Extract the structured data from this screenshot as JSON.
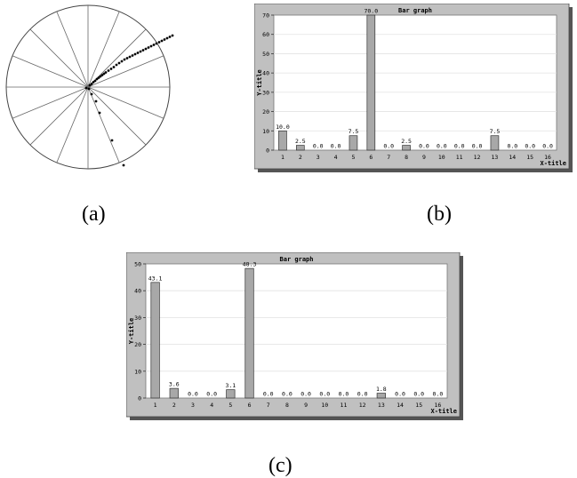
{
  "panel_labels": {
    "a": "(a)",
    "b": "(b)",
    "c": "(c)"
  },
  "colors": {
    "frame": "#c0c0c0",
    "shadow": "#555555",
    "bar_fill": "#a8a8a8",
    "bar_stroke": "#333333",
    "grid": "#e2e2e2"
  },
  "chart_data": [
    {
      "panel": "a",
      "type": "scatter",
      "title": "",
      "note": "polar plot: circle divided into 16 radial sectors with points along rays",
      "sectors": 16,
      "points": [
        [
          2,
          2
        ],
        [
          4,
          3.5
        ],
        [
          6,
          5.5
        ],
        [
          8,
          7
        ],
        [
          10,
          9
        ],
        [
          12,
          10.5
        ],
        [
          14,
          12
        ],
        [
          16,
          13.5
        ],
        [
          18,
          15
        ],
        [
          20,
          16.5
        ],
        [
          23,
          18.5
        ],
        [
          26,
          20.5
        ],
        [
          29,
          22.5
        ],
        [
          32,
          25
        ],
        [
          35,
          27
        ],
        [
          38,
          29
        ],
        [
          41,
          31
        ],
        [
          44,
          32.5
        ],
        [
          47,
          34
        ],
        [
          50,
          35.5
        ],
        [
          53,
          37
        ],
        [
          56,
          38.5
        ],
        [
          59,
          40
        ],
        [
          62,
          41.5
        ],
        [
          65,
          43
        ],
        [
          68,
          44.5
        ],
        [
          71,
          46
        ],
        [
          74,
          47.5
        ],
        [
          77,
          49
        ],
        [
          80,
          50.5
        ],
        [
          83,
          52
        ],
        [
          86,
          53.5
        ],
        [
          89,
          55
        ],
        [
          92,
          56.5
        ],
        [
          95,
          58
        ],
        [
          13,
          -29
        ],
        [
          27,
          -60
        ],
        [
          40,
          -88
        ],
        [
          9,
          -16
        ],
        [
          4,
          -8
        ],
        [
          -2,
          -1
        ],
        [
          1,
          -2
        ]
      ]
    },
    {
      "panel": "b",
      "type": "bar",
      "title": "Bar graph",
      "xlabel": "X-title",
      "ylabel": "Y-title",
      "ylim": [
        0,
        70
      ],
      "yticks": [
        0,
        10,
        20,
        30,
        40,
        50,
        60,
        70
      ],
      "categories": [
        "1",
        "2",
        "3",
        "4",
        "5",
        "6",
        "7",
        "8",
        "9",
        "10",
        "11",
        "12",
        "13",
        "14",
        "15",
        "16"
      ],
      "values": [
        10.0,
        2.5,
        0.0,
        0.0,
        7.5,
        70.0,
        0.0,
        2.5,
        0.0,
        0.0,
        0.0,
        0.0,
        7.5,
        0.0,
        0.0,
        0.0
      ],
      "value_labels": [
        "10.0",
        "2.5",
        "0.0",
        "0.0",
        "7.5",
        "70.0",
        "0.0",
        "2.5",
        "0.0",
        "0.0",
        "0.0",
        "0.0",
        "7.5",
        "0.0",
        "0.0",
        "0.0"
      ],
      "grid": true
    },
    {
      "panel": "c",
      "type": "bar",
      "title": "Bar graph",
      "xlabel": "X-title",
      "ylabel": "Y-title",
      "ylim": [
        0,
        50
      ],
      "yticks": [
        0,
        10,
        20,
        30,
        40,
        50
      ],
      "categories": [
        "1",
        "2",
        "3",
        "4",
        "5",
        "6",
        "7",
        "8",
        "9",
        "10",
        "11",
        "12",
        "13",
        "14",
        "15",
        "16"
      ],
      "values": [
        43.1,
        3.6,
        0.0,
        0.0,
        3.1,
        48.3,
        0.0,
        0.0,
        0.0,
        0.0,
        0.0,
        0.0,
        1.8,
        0.0,
        0.0,
        0.0
      ],
      "value_labels": [
        "43.1",
        "3.6",
        "0.0",
        "0.0",
        "3.1",
        "48.3",
        "0.0",
        "0.0",
        "0.0",
        "0.0",
        "0.0",
        "0.0",
        "1.8",
        "0.0",
        "0.0",
        "0.0"
      ],
      "grid": true
    }
  ]
}
